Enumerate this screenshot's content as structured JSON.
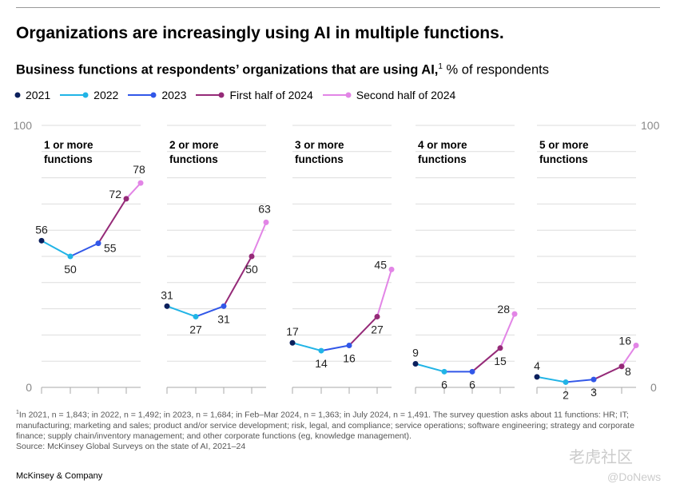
{
  "title": "Organizations are increasingly using AI in multiple functions.",
  "subtitle": {
    "bold": "Business functions at respondents’ organizations that are using AI,",
    "sup": "1",
    "rest": " % of respondents"
  },
  "colors": {
    "2021": "#0b1f5c",
    "2022": "#21b4e6",
    "2023": "#3157e8",
    "First half of 2024": "#952a78",
    "Second half of 2024": "#e285e6"
  },
  "chart_data": {
    "type": "line",
    "categories": [
      "2021",
      "2022",
      "2023",
      "First half of 2024",
      "Second half of 2024"
    ],
    "legend": [
      "2021",
      "2022",
      "2023",
      "First half of 2024",
      "Second half of 2024"
    ],
    "ylim": [
      0,
      100
    ],
    "y_tick_labels": [
      "100",
      "0"
    ],
    "grid": true,
    "legend_position": "top-left",
    "panels": [
      {
        "title": [
          "1 or more",
          "functions"
        ],
        "values": [
          56,
          50,
          55,
          72,
          78
        ]
      },
      {
        "title": [
          "2 or more",
          "functions"
        ],
        "values": [
          31,
          27,
          31,
          50,
          63
        ]
      },
      {
        "title": [
          "3 or more",
          "functions"
        ],
        "values": [
          17,
          14,
          16,
          27,
          45
        ]
      },
      {
        "title": [
          "4 or more",
          "functions"
        ],
        "values": [
          9,
          6,
          6,
          15,
          28
        ]
      },
      {
        "title": [
          "5 or more",
          "functions"
        ],
        "values": [
          4,
          2,
          3,
          8,
          16
        ]
      }
    ]
  },
  "footnote": {
    "sup": "1",
    "text": "In 2021, n = 1,843; in 2022, n = 1,492; in 2023, n = 1,684; in Feb–Mar 2024, n = 1,363; in July 2024, n = 1,491. The survey question asks about 11 functions: HR; IT; manufacturing; marketing and sales; product and/or service development; risk, legal, and compliance; service operations; software engineering; strategy and corporate finance; supply chain/inventory management; and other corporate functions (eg, knowledge management).",
    "source": "Source: McKinsey Global Surveys on the state of AI, 2021–24"
  },
  "brand": "McKinsey & Company",
  "watermark": {
    "line1": "老虎社区",
    "line2": "@DoNews"
  }
}
